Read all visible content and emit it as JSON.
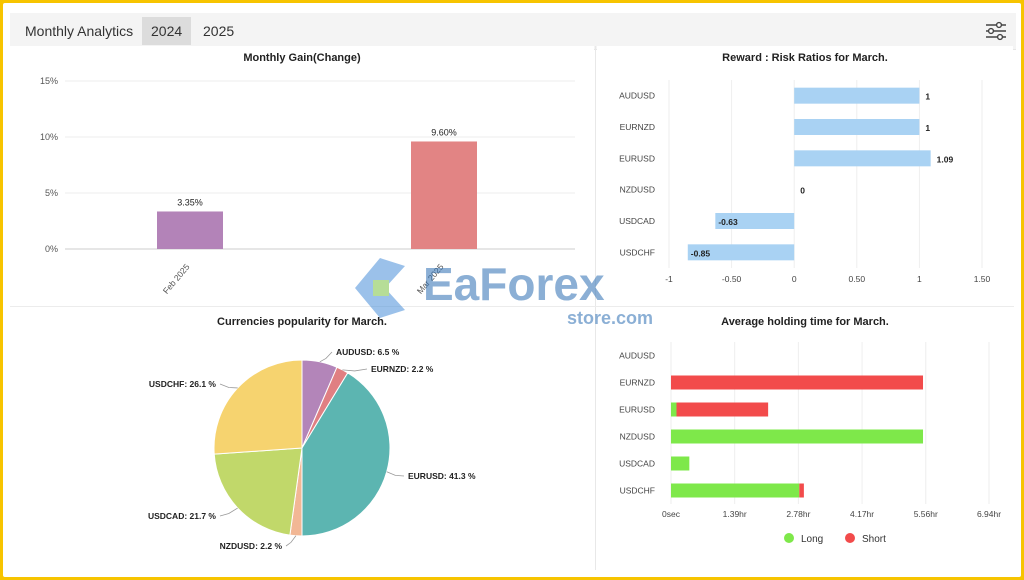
{
  "header": {
    "title": "Monthly Analytics",
    "tabs": [
      {
        "label": "2024",
        "active": true
      },
      {
        "label": "2025",
        "active": false
      }
    ],
    "filter_icon": "sliders-icon"
  },
  "watermark": {
    "brand": "EaForex",
    "sub": "store.com"
  },
  "monthly_gain": {
    "title": "Monthly Gain(Change)",
    "y_ticks": [
      "15%",
      "10%",
      "5%",
      "0%"
    ],
    "bars": [
      {
        "label": "Feb 2025",
        "value": 3.35,
        "text": "3.35%",
        "color": "#b383b8"
      },
      {
        "label": "Mar 2025",
        "value": 9.6,
        "text": "9.60%",
        "color": "#e28484"
      }
    ]
  },
  "reward_risk": {
    "title": "Reward : Risk Ratios for March.",
    "x_ticks": [
      "-1",
      "-0.50",
      "0",
      "0.50",
      "1",
      "1.50"
    ],
    "rows": [
      {
        "pair": "AUDUSD",
        "value": 1,
        "text": "1"
      },
      {
        "pair": "EURNZD",
        "value": 1,
        "text": "1"
      },
      {
        "pair": "EURUSD",
        "value": 1.09,
        "text": "1.09"
      },
      {
        "pair": "NZDUSD",
        "value": 0,
        "text": "0"
      },
      {
        "pair": "USDCAD",
        "value": -0.63,
        "text": "-0.63"
      },
      {
        "pair": "USDCHF",
        "value": -0.85,
        "text": "-0.85"
      }
    ],
    "color": "#a9d2f3"
  },
  "popularity": {
    "title": "Currencies popularity for March.",
    "slices": [
      {
        "pair": "AUDUSD",
        "pct": 6.5,
        "text": "AUDUSD: 6.5 %",
        "color": "#b385b9"
      },
      {
        "pair": "EURNZD",
        "pct": 2.2,
        "text": "EURNZD: 2.2 %",
        "color": "#e07f82"
      },
      {
        "pair": "EURUSD",
        "pct": 41.3,
        "text": "EURUSD: 41.3 %",
        "color": "#5cb5b1"
      },
      {
        "pair": "NZDUSD",
        "pct": 2.2,
        "text": "NZDUSD: 2.2 %",
        "color": "#f2b795"
      },
      {
        "pair": "USDCAD",
        "pct": 21.7,
        "text": "USDCAD: 21.7 %",
        "color": "#c1d86a"
      },
      {
        "pair": "USDCHF",
        "pct": 26.1,
        "text": "USDCHF: 26.1 %",
        "color": "#f6d36f"
      }
    ]
  },
  "holding": {
    "title": "Average holding time for March.",
    "x_ticks": [
      "0sec",
      "1.39hr",
      "2.78hr",
      "4.17hr",
      "5.56hr",
      "6.94hr"
    ],
    "rows": [
      {
        "pair": "AUDUSD",
        "long": 0,
        "short": 0
      },
      {
        "pair": "EURNZD",
        "long": 0,
        "short": 5.5
      },
      {
        "pair": "EURUSD",
        "long": 0.12,
        "short": 2.0
      },
      {
        "pair": "NZDUSD",
        "long": 5.5,
        "short": 0
      },
      {
        "pair": "USDCAD",
        "long": 0.4,
        "short": 0
      },
      {
        "pair": "USDCHF",
        "long": 2.8,
        "short": 0.1
      }
    ],
    "legend": [
      {
        "label": "Long",
        "color": "#7ee84a"
      },
      {
        "label": "Short",
        "color": "#f24b4b"
      }
    ]
  }
}
